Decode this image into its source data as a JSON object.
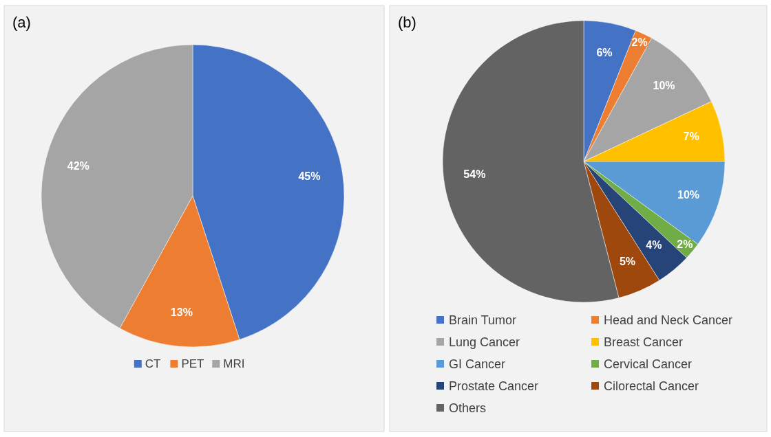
{
  "chart_data": [
    {
      "type": "pie",
      "title": "(a)",
      "categories": [
        "CT",
        "PET",
        "MRI"
      ],
      "values": [
        45,
        13,
        42
      ],
      "colors": [
        "#4472c4",
        "#ed7d31",
        "#a5a5a5"
      ],
      "value_labels": [
        "45%",
        "13%",
        "42%"
      ],
      "legend": "bottom"
    },
    {
      "type": "pie",
      "title": "(b)",
      "categories": [
        "Brain Tumor",
        "Head and Neck Cancer",
        "Lung Cancer",
        "Breast Cancer",
        "GI Cancer",
        "Cervical Cancer",
        "Prostate Cancer",
        "Cilorectal Cancer",
        "Others"
      ],
      "values": [
        6,
        2,
        10,
        7,
        10,
        2,
        4,
        5,
        54
      ],
      "colors": [
        "#4472c4",
        "#ed7d31",
        "#a5a5a5",
        "#ffc000",
        "#5b9bd5",
        "#70ad47",
        "#264478",
        "#9e480e",
        "#636363"
      ],
      "value_labels": [
        "6%",
        "2%",
        "10%",
        "7%",
        "10%",
        "2%",
        "4%",
        "5%",
        "54%"
      ],
      "legend": "bottom"
    }
  ]
}
